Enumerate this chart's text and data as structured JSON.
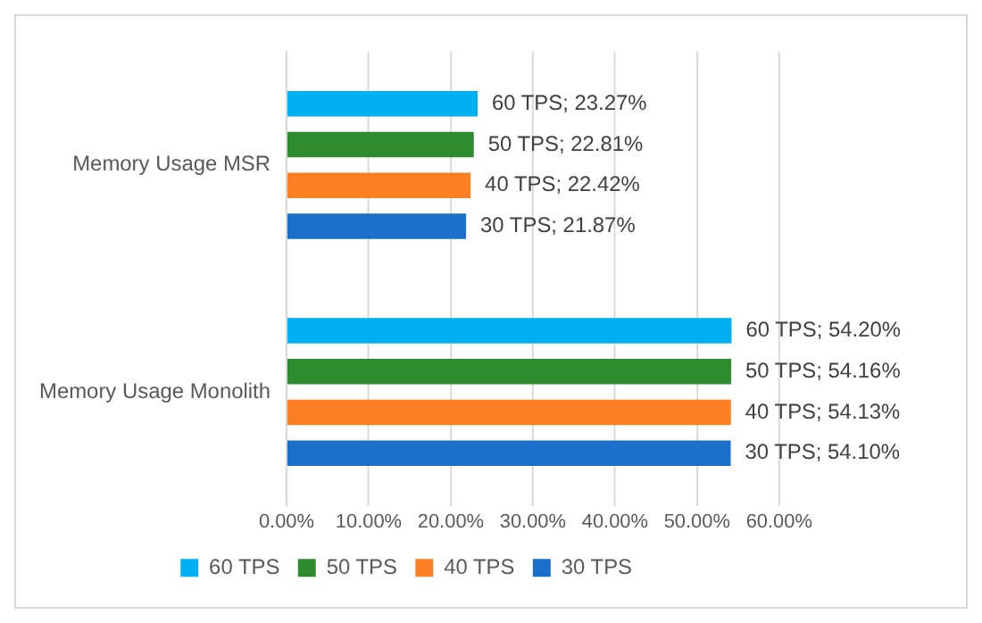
{
  "chart_data": {
    "type": "bar",
    "orientation": "horizontal",
    "categories": [
      "Memory Usage MSR",
      "Memory Usage Monolith"
    ],
    "series": [
      {
        "name": "60 TPS",
        "color": "#00b0f0",
        "values": [
          23.27,
          54.2
        ],
        "value_labels": [
          "60 TPS; 23.27%",
          "60 TPS; 54.20%"
        ]
      },
      {
        "name": "50 TPS",
        "color": "#2e8b2e",
        "values": [
          22.81,
          54.16
        ],
        "value_labels": [
          "50 TPS; 22.81%",
          "50 TPS; 54.16%"
        ]
      },
      {
        "name": "40 TPS",
        "color": "#fd7f23",
        "values": [
          22.42,
          54.13
        ],
        "value_labels": [
          "40 TPS; 22.42%",
          "40 TPS; 54.13%"
        ]
      },
      {
        "name": "30 TPS",
        "color": "#1a70c8",
        "values": [
          21.87,
          54.1
        ],
        "value_labels": [
          "30 TPS; 21.87%",
          "30 TPS; 54.10%"
        ]
      }
    ],
    "xlim": [
      0,
      60
    ],
    "xticks": [
      {
        "value": 0,
        "label": "0.00%"
      },
      {
        "value": 10,
        "label": "10.00%"
      },
      {
        "value": 20,
        "label": "20.00%"
      },
      {
        "value": 30,
        "label": "30.00%"
      },
      {
        "value": 40,
        "label": "40.00%"
      },
      {
        "value": 50,
        "label": "50.00%"
      },
      {
        "value": 60,
        "label": "60.00%"
      }
    ],
    "grid": "x",
    "legend": "bottom"
  }
}
